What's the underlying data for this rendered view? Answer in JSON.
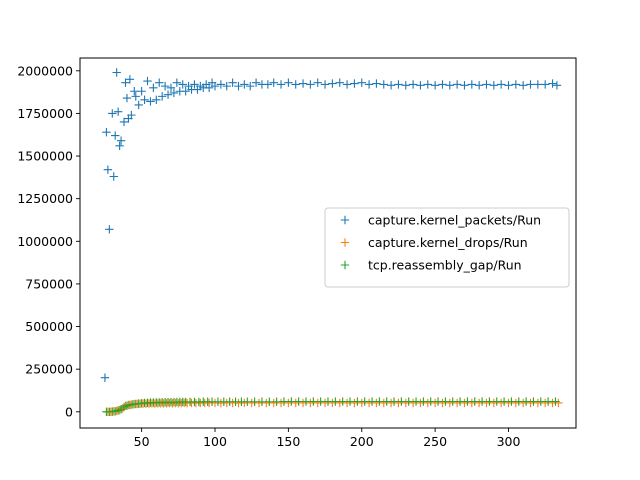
{
  "chart_data": {
    "type": "scatter",
    "title": "",
    "xlabel": "",
    "ylabel": "",
    "xlim": [
      8,
      346
    ],
    "ylim": [
      -95000,
      2075000
    ],
    "xticks": [
      50,
      100,
      150,
      200,
      250,
      300
    ],
    "xtick_labels": [
      "50",
      "100",
      "150",
      "200",
      "250",
      "300"
    ],
    "yticks": [
      0,
      250000,
      500000,
      750000,
      1000000,
      1250000,
      1500000,
      1750000,
      2000000
    ],
    "ytick_labels": [
      "0",
      "250000",
      "500000",
      "750000",
      "1000000",
      "1250000",
      "1500000",
      "1750000",
      "2000000"
    ],
    "grid": false,
    "legend_position": "center-right",
    "marker": "+",
    "series": [
      {
        "name": "capture.kernel_packets/Run",
        "color": "#1f77b4",
        "x": [
          25,
          26,
          27,
          28,
          30,
          31,
          32,
          33,
          34,
          35,
          36,
          38,
          39,
          40,
          41,
          42,
          43,
          45,
          46,
          48,
          50,
          52,
          54,
          56,
          58,
          60,
          62,
          64,
          66,
          68,
          70,
          72,
          74,
          76,
          78,
          80,
          82,
          84,
          86,
          88,
          90,
          92,
          94,
          96,
          98,
          100,
          104,
          108,
          112,
          116,
          120,
          124,
          128,
          132,
          136,
          140,
          145,
          150,
          155,
          160,
          165,
          170,
          175,
          180,
          185,
          190,
          195,
          200,
          205,
          210,
          215,
          220,
          225,
          230,
          235,
          240,
          245,
          250,
          255,
          260,
          265,
          270,
          275,
          280,
          285,
          290,
          295,
          300,
          305,
          310,
          315,
          320,
          325,
          330,
          333
        ],
        "y": [
          200000,
          1640000,
          1420000,
          1070000,
          1750000,
          1380000,
          1620000,
          1990000,
          1760000,
          1560000,
          1590000,
          1700000,
          1930000,
          1840000,
          1720000,
          1950000,
          1740000,
          1880000,
          1850000,
          1800000,
          1880000,
          1830000,
          1940000,
          1820000,
          1900000,
          1830000,
          1930000,
          1850000,
          1910000,
          1860000,
          1900000,
          1870000,
          1930000,
          1880000,
          1920000,
          1880000,
          1910000,
          1890000,
          1920000,
          1890000,
          1910000,
          1900000,
          1920000,
          1900000,
          1930000,
          1910000,
          1920000,
          1910000,
          1930000,
          1910000,
          1920000,
          1910000,
          1930000,
          1920000,
          1920000,
          1930000,
          1920000,
          1930000,
          1920000,
          1925000,
          1920000,
          1930000,
          1920000,
          1925000,
          1930000,
          1920000,
          1925000,
          1930000,
          1920000,
          1925000,
          1920000,
          1915000,
          1920000,
          1915000,
          1920000,
          1915000,
          1920000,
          1915000,
          1920000,
          1915000,
          1920000,
          1915000,
          1920000,
          1915000,
          1920000,
          1915000,
          1920000,
          1915000,
          1920000,
          1915000,
          1920000,
          1920000,
          1920000,
          1925000,
          1915000
        ]
      },
      {
        "name": "capture.kernel_drops/Run",
        "color": "#ff7f0e",
        "x": [
          27,
          29,
          31,
          33,
          35,
          37,
          39,
          41,
          43,
          45,
          47,
          49,
          51,
          53,
          55,
          57,
          59,
          61,
          63,
          65,
          67,
          69,
          71,
          73,
          75,
          77,
          79,
          81,
          84,
          87,
          90,
          93,
          96,
          100,
          104,
          108,
          112,
          116,
          120,
          125,
          130,
          135,
          140,
          145,
          150,
          155,
          160,
          165,
          170,
          175,
          180,
          185,
          190,
          195,
          200,
          205,
          210,
          215,
          220,
          225,
          230,
          235,
          240,
          245,
          250,
          255,
          260,
          265,
          270,
          275,
          280,
          285,
          290,
          295,
          300,
          305,
          310,
          315,
          320,
          325,
          330,
          334
        ],
        "y": [
          0,
          0,
          2000,
          5000,
          10000,
          20000,
          35000,
          40000,
          42000,
          45000,
          46000,
          47000,
          48000,
          47000,
          48000,
          49000,
          48000,
          49000,
          50000,
          49000,
          50000,
          51000,
          50000,
          51000,
          50000,
          51000,
          52000,
          51000,
          52000,
          51000,
          52000,
          51000,
          52000,
          52000,
          51000,
          52000,
          52000,
          51000,
          52000,
          52000,
          52000,
          52000,
          52000,
          52000,
          52000,
          52000,
          52000,
          52000,
          52000,
          52000,
          52000,
          52000,
          52000,
          52000,
          52000,
          52000,
          52000,
          52000,
          52000,
          52000,
          52000,
          52000,
          52000,
          52000,
          52000,
          52000,
          52000,
          52000,
          52000,
          52000,
          52000,
          52000,
          52000,
          52000,
          52000,
          52000,
          52000,
          52000,
          52000,
          52000,
          52000,
          52000
        ]
      },
      {
        "name": "tcp.reassembly_gap/Run",
        "color": "#2ca02c",
        "x": [
          26,
          28,
          30,
          32,
          34,
          36,
          38,
          40,
          42,
          44,
          46,
          48,
          50,
          52,
          54,
          56,
          58,
          60,
          62,
          64,
          66,
          68,
          70,
          72,
          74,
          76,
          78,
          80,
          83,
          86,
          89,
          92,
          95,
          98,
          102,
          106,
          110,
          114,
          118,
          122,
          127,
          132,
          137,
          142,
          147,
          152,
          157,
          162,
          167,
          172,
          177,
          182,
          187,
          192,
          197,
          202,
          207,
          212,
          217,
          222,
          227,
          232,
          237,
          242,
          247,
          252,
          257,
          262,
          267,
          272,
          277,
          282,
          287,
          292,
          297,
          302,
          307,
          312,
          317,
          322,
          327,
          332
        ],
        "y": [
          0,
          0,
          1000,
          3000,
          8000,
          15000,
          28000,
          36000,
          40000,
          44000,
          46000,
          48000,
          50000,
          52000,
          53000,
          54000,
          54000,
          55000,
          55000,
          56000,
          56000,
          56000,
          57000,
          57000,
          57000,
          58000,
          58000,
          58000,
          58000,
          58000,
          58000,
          59000,
          59000,
          59000,
          59000,
          59000,
          59000,
          59000,
          59000,
          59000,
          59000,
          59000,
          59000,
          59000,
          60000,
          60000,
          60000,
          60000,
          60000,
          60000,
          60000,
          60000,
          60000,
          60000,
          60000,
          60000,
          60000,
          60000,
          60000,
          60000,
          60000,
          60000,
          60000,
          60000,
          60000,
          60000,
          60000,
          60000,
          60000,
          60000,
          60000,
          60000,
          60000,
          60000,
          60000,
          60000,
          60000,
          60000,
          60000,
          60000,
          60000,
          60000
        ]
      }
    ]
  }
}
